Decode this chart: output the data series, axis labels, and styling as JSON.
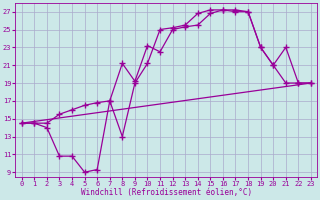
{
  "background_color": "#cce8e8",
  "grid_color": "#aaaacc",
  "line_color": "#990099",
  "marker": "+",
  "markersize": 4,
  "linewidth": 0.9,
  "xlim": [
    -0.5,
    23.5
  ],
  "ylim": [
    8.5,
    28
  ],
  "xticks": [
    0,
    1,
    2,
    3,
    4,
    5,
    6,
    7,
    8,
    9,
    10,
    11,
    12,
    13,
    14,
    15,
    16,
    17,
    18,
    19,
    20,
    21,
    22,
    23
  ],
  "yticks": [
    9,
    11,
    13,
    15,
    17,
    19,
    21,
    23,
    25,
    27
  ],
  "xlabel": "Windchill (Refroidissement éolien,°C)",
  "xlabel_fontsize": 5.5,
  "tick_fontsize": 5.0,
  "series1_x": [
    0,
    1,
    2,
    3,
    4,
    5,
    6,
    7,
    8,
    9,
    10,
    11,
    12,
    13,
    14,
    15,
    16,
    17,
    18,
    19,
    20,
    21,
    22,
    23
  ],
  "series1_y": [
    14.5,
    14.5,
    14.0,
    10.8,
    10.8,
    9.0,
    9.3,
    17.0,
    13.0,
    19.0,
    21.2,
    25.0,
    25.2,
    25.5,
    26.8,
    27.2,
    27.2,
    27.0,
    27.0,
    23.0,
    21.0,
    19.0,
    19.0,
    19.0
  ],
  "series2_x": [
    0,
    1,
    2,
    3,
    4,
    5,
    6,
    7,
    8,
    9,
    10,
    11,
    12,
    13,
    14,
    15,
    16,
    17,
    18,
    19,
    20,
    21,
    22,
    23
  ],
  "series2_y": [
    14.5,
    14.5,
    14.5,
    15.5,
    16.0,
    16.5,
    16.8,
    17.0,
    21.2,
    19.2,
    23.2,
    22.5,
    25.0,
    25.3,
    25.5,
    26.8,
    27.2,
    27.2,
    27.0,
    23.0,
    21.0,
    23.0,
    19.0,
    19.0
  ],
  "series3_x": [
    0,
    23
  ],
  "series3_y": [
    14.5,
    19.0
  ]
}
